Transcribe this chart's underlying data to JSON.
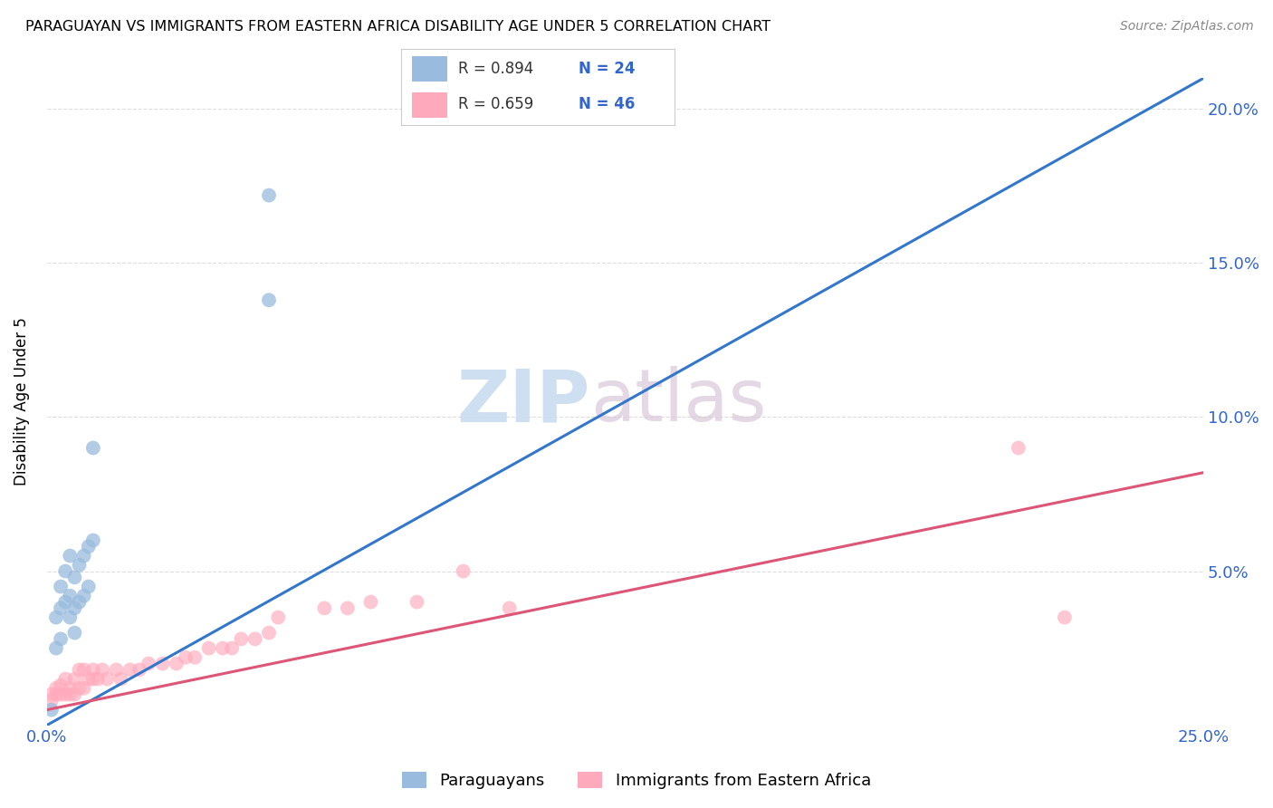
{
  "title": "PARAGUAYAN VS IMMIGRANTS FROM EASTERN AFRICA DISABILITY AGE UNDER 5 CORRELATION CHART",
  "source": "Source: ZipAtlas.com",
  "ylabel": "Disability Age Under 5",
  "xlim": [
    0.0,
    0.25
  ],
  "ylim": [
    0.0,
    0.21
  ],
  "blue_color": "#99BBDD",
  "pink_color": "#FFAABC",
  "blue_line_color": "#3377CC",
  "pink_line_color": "#DD5577",
  "background_color": "#FFFFFF",
  "grid_color": "#DDDDDD",
  "legend_R1": "R = 0.894",
  "legend_N1": "N = 24",
  "legend_R2": "R = 0.659",
  "legend_N2": "N = 46",
  "watermark_zip": "ZIP",
  "watermark_atlas": "atlas",
  "paraguayan_x": [
    0.001,
    0.002,
    0.002,
    0.003,
    0.003,
    0.003,
    0.004,
    0.004,
    0.005,
    0.005,
    0.005,
    0.006,
    0.006,
    0.006,
    0.007,
    0.007,
    0.008,
    0.008,
    0.009,
    0.009,
    0.01,
    0.01,
    0.048,
    0.048
  ],
  "paraguayan_y": [
    0.005,
    0.035,
    0.025,
    0.045,
    0.038,
    0.028,
    0.05,
    0.04,
    0.055,
    0.042,
    0.035,
    0.048,
    0.038,
    0.03,
    0.052,
    0.04,
    0.055,
    0.042,
    0.058,
    0.045,
    0.06,
    0.09,
    0.138,
    0.172
  ],
  "eastern_africa_x": [
    0.001,
    0.001,
    0.002,
    0.002,
    0.003,
    0.003,
    0.004,
    0.004,
    0.005,
    0.005,
    0.006,
    0.006,
    0.007,
    0.007,
    0.008,
    0.008,
    0.009,
    0.01,
    0.01,
    0.011,
    0.012,
    0.013,
    0.015,
    0.016,
    0.018,
    0.02,
    0.022,
    0.025,
    0.028,
    0.03,
    0.032,
    0.035,
    0.038,
    0.04,
    0.042,
    0.045,
    0.048,
    0.05,
    0.06,
    0.065,
    0.07,
    0.08,
    0.09,
    0.1,
    0.21,
    0.22
  ],
  "eastern_africa_y": [
    0.008,
    0.01,
    0.01,
    0.012,
    0.01,
    0.013,
    0.01,
    0.015,
    0.01,
    0.012,
    0.01,
    0.015,
    0.012,
    0.018,
    0.012,
    0.018,
    0.015,
    0.015,
    0.018,
    0.015,
    0.018,
    0.015,
    0.018,
    0.015,
    0.018,
    0.018,
    0.02,
    0.02,
    0.02,
    0.022,
    0.022,
    0.025,
    0.025,
    0.025,
    0.028,
    0.028,
    0.03,
    0.035,
    0.038,
    0.038,
    0.04,
    0.04,
    0.05,
    0.038,
    0.09,
    0.035
  ],
  "blue_trend_x": [
    0.0,
    0.25
  ],
  "blue_trend_y": [
    0.0,
    0.21
  ],
  "pink_trend_x": [
    0.0,
    0.25
  ],
  "pink_trend_y": [
    0.005,
    0.082
  ]
}
